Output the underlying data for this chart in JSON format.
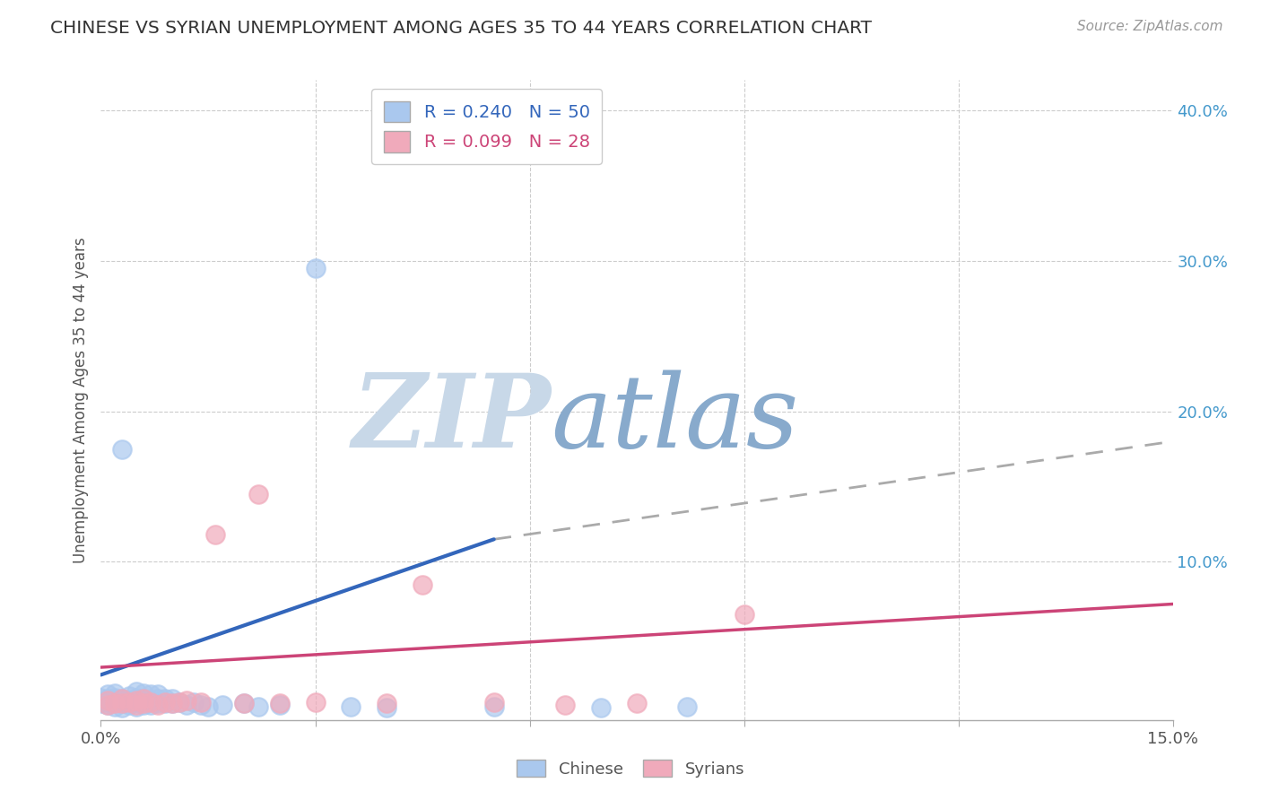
{
  "title": "CHINESE VS SYRIAN UNEMPLOYMENT AMONG AGES 35 TO 44 YEARS CORRELATION CHART",
  "source": "Source: ZipAtlas.com",
  "ylabel": "Unemployment Among Ages 35 to 44 years",
  "xlim": [
    0.0,
    0.15
  ],
  "ylim": [
    -0.005,
    0.42
  ],
  "chinese_R": 0.24,
  "chinese_N": 50,
  "syrian_R": 0.099,
  "syrian_N": 28,
  "chinese_color": "#aac8ee",
  "syrian_color": "#f0aabb",
  "chinese_line_color": "#3366bb",
  "syrian_line_color": "#cc4477",
  "dashed_line_color": "#aaaaaa",
  "watermark_zip": "ZIP",
  "watermark_atlas": "atlas",
  "watermark_color_zip": "#c8d8e8",
  "watermark_color_atlas": "#88aacc",
  "background_color": "#ffffff",
  "grid_color": "#cccccc",
  "chinese_x": [
    0.0,
    0.0,
    0.001,
    0.001,
    0.001,
    0.001,
    0.002,
    0.002,
    0.002,
    0.002,
    0.003,
    0.003,
    0.003,
    0.003,
    0.004,
    0.004,
    0.004,
    0.005,
    0.005,
    0.005,
    0.005,
    0.006,
    0.006,
    0.006,
    0.006,
    0.007,
    0.007,
    0.007,
    0.008,
    0.008,
    0.008,
    0.009,
    0.009,
    0.01,
    0.01,
    0.011,
    0.012,
    0.013,
    0.014,
    0.015,
    0.017,
    0.02,
    0.022,
    0.025,
    0.03,
    0.035,
    0.04,
    0.055,
    0.07,
    0.082
  ],
  "chinese_y": [
    0.006,
    0.01,
    0.005,
    0.007,
    0.009,
    0.012,
    0.004,
    0.007,
    0.01,
    0.013,
    0.003,
    0.006,
    0.009,
    0.175,
    0.005,
    0.008,
    0.011,
    0.004,
    0.007,
    0.01,
    0.014,
    0.005,
    0.007,
    0.009,
    0.013,
    0.005,
    0.008,
    0.012,
    0.006,
    0.009,
    0.012,
    0.006,
    0.009,
    0.006,
    0.009,
    0.007,
    0.005,
    0.007,
    0.005,
    0.004,
    0.005,
    0.006,
    0.004,
    0.005,
    0.295,
    0.004,
    0.003,
    0.004,
    0.003,
    0.004
  ],
  "syrian_x": [
    0.001,
    0.001,
    0.002,
    0.003,
    0.003,
    0.004,
    0.005,
    0.005,
    0.006,
    0.006,
    0.007,
    0.008,
    0.009,
    0.01,
    0.011,
    0.012,
    0.014,
    0.016,
    0.02,
    0.022,
    0.025,
    0.03,
    0.04,
    0.045,
    0.055,
    0.065,
    0.075,
    0.09
  ],
  "syrian_y": [
    0.005,
    0.008,
    0.006,
    0.006,
    0.009,
    0.007,
    0.005,
    0.008,
    0.006,
    0.009,
    0.007,
    0.005,
    0.007,
    0.006,
    0.007,
    0.008,
    0.007,
    0.118,
    0.006,
    0.145,
    0.006,
    0.007,
    0.006,
    0.085,
    0.007,
    0.005,
    0.006,
    0.065
  ],
  "chinese_trend_x": [
    0.0,
    0.055
  ],
  "chinese_trend_y": [
    0.025,
    0.115
  ],
  "dashed_trend_x": [
    0.055,
    0.15
  ],
  "dashed_trend_y": [
    0.115,
    0.18
  ],
  "syrian_trend_x": [
    0.0,
    0.15
  ],
  "syrian_trend_y": [
    0.03,
    0.072
  ]
}
